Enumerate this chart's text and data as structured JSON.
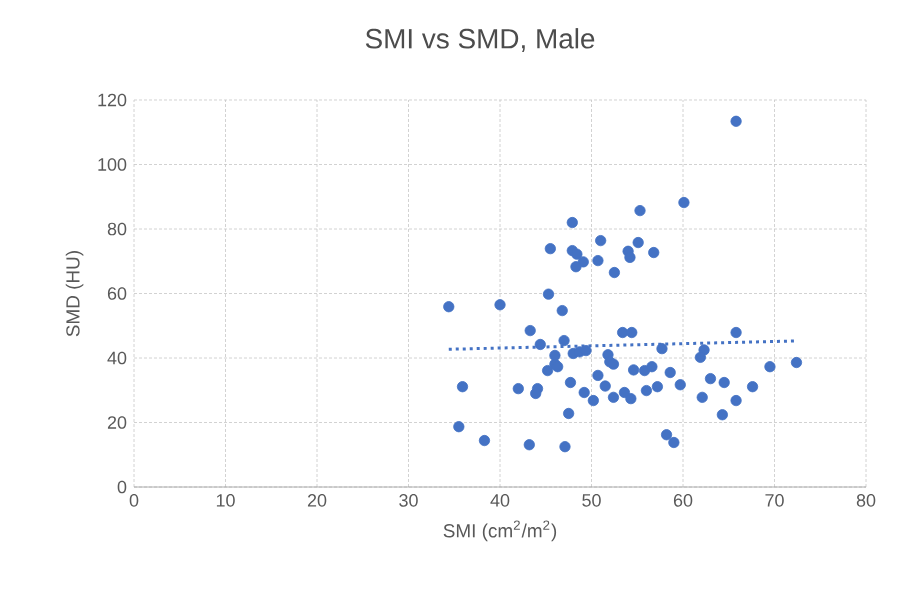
{
  "chart_data": {
    "type": "scatter",
    "title": "SMI vs SMD, Male",
    "xlabel": "SMI (cm$^{2}$/m$^{2}$)",
    "ylabel": "SMD (HU)",
    "xlim": [
      0,
      80
    ],
    "ylim": [
      0,
      120
    ],
    "xticks": [
      0,
      10,
      20,
      30,
      40,
      50,
      60,
      70,
      80
    ],
    "yticks": [
      0,
      20,
      40,
      60,
      80,
      100,
      120
    ],
    "grid": true,
    "marker": "circle",
    "series": [
      {
        "color": "#4472c4",
        "x": [
          65.8,
          60.1,
          55.3,
          47.9,
          51.0,
          45.5,
          47.9,
          48.4,
          55.1,
          54.0,
          54.2,
          56.8,
          50.7,
          49.1,
          48.3,
          52.5,
          45.3,
          40.0,
          34.4,
          46.8,
          43.3,
          44.4,
          47.0,
          53.4,
          54.4,
          65.8,
          57.7,
          46.0,
          48.0,
          48.7,
          49.4,
          51.8,
          52.0,
          52.4,
          46.0,
          45.2,
          46.3,
          62.3,
          61.9,
          50.7,
          54.6,
          55.8,
          56.6,
          58.6,
          69.5,
          72.4,
          35.9,
          42.0,
          44.1,
          43.9,
          47.7,
          51.5,
          49.2,
          50.2,
          52.4,
          53.6,
          54.3,
          56.0,
          57.2,
          59.7,
          63.0,
          64.5,
          67.6,
          62.1,
          65.8,
          64.3,
          47.5,
          35.5,
          38.3,
          43.2,
          47.1,
          58.2,
          59.0
        ],
        "values": [
          113.4,
          88.2,
          85.7,
          82.0,
          76.4,
          73.9,
          73.3,
          72.2,
          75.8,
          73.1,
          71.2,
          72.7,
          70.2,
          69.8,
          68.3,
          66.5,
          59.8,
          56.5,
          55.9,
          54.7,
          48.5,
          44.2,
          45.4,
          47.9,
          47.9,
          47.9,
          42.9,
          40.8,
          41.4,
          41.9,
          42.3,
          41.0,
          38.8,
          38.1,
          38.1,
          36.1,
          37.3,
          42.5,
          40.2,
          34.6,
          36.3,
          36.1,
          37.3,
          35.5,
          37.3,
          38.6,
          31.1,
          30.5,
          30.5,
          29.0,
          32.4,
          31.3,
          29.3,
          26.8,
          27.8,
          29.3,
          27.4,
          29.9,
          31.1,
          31.7,
          33.6,
          32.4,
          31.1,
          27.8,
          26.8,
          22.4,
          22.8,
          18.7,
          14.4,
          13.1,
          12.5,
          16.2,
          13.8
        ]
      },
      {
        "type": "line",
        "color": "#4472c4",
        "line_style": "dotted",
        "marker": "none",
        "x": [
          34.4,
          72.4
        ],
        "values": [
          42.7,
          45.3
        ]
      }
    ]
  }
}
